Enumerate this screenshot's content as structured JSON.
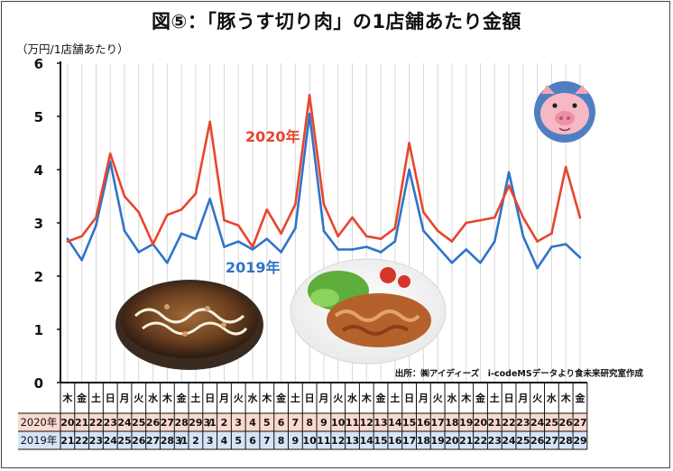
{
  "title": "図⑤：「豚うす切り肉」の1店舗あたり金額",
  "unit_label": "（万円/1店舗あたり）",
  "source_note": "出所：㈱アイディーズ　i-codeMSデータより食未来研究室作成",
  "chart_data": {
    "type": "line",
    "ylim": [
      0,
      6
    ],
    "yticks": [
      "0",
      "1",
      "2",
      "3",
      "4",
      "5",
      "6"
    ],
    "grid_x": true,
    "grid_y": false,
    "weekdays": [
      "木",
      "金",
      "土",
      "日",
      "月",
      "火",
      "水",
      "木",
      "金",
      "土",
      "日",
      "月",
      "火",
      "水",
      "木",
      "金",
      "土",
      "日",
      "月",
      "火",
      "水",
      "木",
      "金",
      "土",
      "日",
      "月",
      "火",
      "水",
      "木",
      "金",
      "土",
      "日",
      "月",
      "火",
      "水",
      "木",
      "金"
    ],
    "series": [
      {
        "name": "2020年",
        "row_label": "2020年",
        "color": "#e8452b",
        "dates": [
          "20",
          "21",
          "22",
          "23",
          "24",
          "25",
          "26",
          "27",
          "28",
          "29",
          "3/1",
          "2",
          "3",
          "4",
          "5",
          "6",
          "7",
          "8",
          "9",
          "10",
          "11",
          "12",
          "13",
          "14",
          "15",
          "16",
          "17",
          "18",
          "19",
          "20",
          "21",
          "22",
          "23",
          "24",
          "25",
          "26",
          "27"
        ],
        "values": [
          2.65,
          2.75,
          3.1,
          4.3,
          3.5,
          3.2,
          2.6,
          3.15,
          3.25,
          3.55,
          4.9,
          3.05,
          2.95,
          2.55,
          3.25,
          2.8,
          3.35,
          5.4,
          3.35,
          2.75,
          3.1,
          2.75,
          2.7,
          2.9,
          4.5,
          3.2,
          2.85,
          2.65,
          3.0,
          3.05,
          3.1,
          3.7,
          3.1,
          2.65,
          2.8,
          4.05,
          3.1
        ]
      },
      {
        "name": "2019年",
        "row_label": "2019年",
        "color": "#2f74c9",
        "dates": [
          "21",
          "22",
          "23",
          "24",
          "25",
          "26",
          "27",
          "28",
          "3/1",
          "2",
          "3",
          "4",
          "5",
          "6",
          "7",
          "8",
          "9",
          "10",
          "11",
          "12",
          "13",
          "14",
          "15",
          "16",
          "17",
          "18",
          "19",
          "20",
          "21",
          "22",
          "23",
          "24",
          "25",
          "26",
          "27",
          "28",
          "29"
        ],
        "values": [
          2.7,
          2.3,
          2.95,
          4.15,
          2.85,
          2.45,
          2.6,
          2.25,
          2.8,
          2.7,
          3.45,
          2.55,
          2.65,
          2.5,
          2.7,
          2.45,
          2.9,
          5.05,
          2.85,
          2.5,
          2.5,
          2.55,
          2.45,
          2.65,
          4.0,
          2.85,
          2.55,
          2.25,
          2.5,
          2.25,
          2.65,
          3.95,
          2.75,
          2.15,
          2.55,
          2.6,
          2.35
        ]
      }
    ]
  },
  "illustrations": {
    "pig": "pig-face-icon",
    "food_left": "okonomiyaki-photo",
    "food_right": "pork-ginger-dish-photo"
  }
}
